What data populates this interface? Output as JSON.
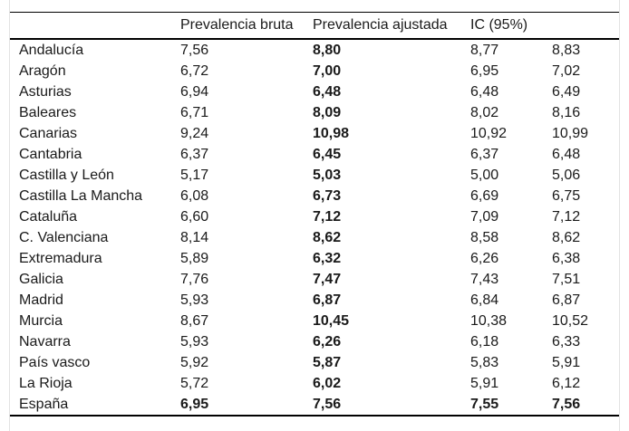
{
  "figure": {
    "headers": {
      "region": "",
      "bruta": "Prevalencia bruta",
      "ajustada": "Prevalencia ajustada",
      "ic": "IC (95%)"
    },
    "rows": [
      {
        "region": "Andalucía",
        "bruta": "7,56",
        "ajustada": "8,80",
        "ic_low": "8,77",
        "ic_high": "8,83",
        "bold": false
      },
      {
        "region": "Aragón",
        "bruta": "6,72",
        "ajustada": "7,00",
        "ic_low": "6,95",
        "ic_high": "7,02",
        "bold": false
      },
      {
        "region": "Asturias",
        "bruta": "6,94",
        "ajustada": "6,48",
        "ic_low": "6,48",
        "ic_high": "6,49",
        "bold": false
      },
      {
        "region": "Baleares",
        "bruta": "6,71",
        "ajustada": "8,09",
        "ic_low": "8,02",
        "ic_high": "8,16",
        "bold": false
      },
      {
        "region": "Canarias",
        "bruta": "9,24",
        "ajustada": "10,98",
        "ic_low": "10,92",
        "ic_high": "10,99",
        "bold": false
      },
      {
        "region": "Cantabria",
        "bruta": "6,37",
        "ajustada": "6,45",
        "ic_low": "6,37",
        "ic_high": "6,48",
        "bold": false
      },
      {
        "region": "Castilla y León",
        "bruta": "5,17",
        "ajustada": "5,03",
        "ic_low": "5,00",
        "ic_high": "5,06",
        "bold": false
      },
      {
        "region": "Castilla La Mancha",
        "bruta": "6,08",
        "ajustada": "6,73",
        "ic_low": "6,69",
        "ic_high": "6,75",
        "bold": false
      },
      {
        "region": "Cataluña",
        "bruta": "6,60",
        "ajustada": "7,12",
        "ic_low": "7,09",
        "ic_high": "7,12",
        "bold": false
      },
      {
        "region": "C. Valenciana",
        "bruta": "8,14",
        "ajustada": "8,62",
        "ic_low": "8,58",
        "ic_high": "8,62",
        "bold": false
      },
      {
        "region": "Extremadura",
        "bruta": "5,89",
        "ajustada": "6,32",
        "ic_low": "6,26",
        "ic_high": "6,38",
        "bold": false
      },
      {
        "region": "Galicia",
        "bruta": "7,76",
        "ajustada": "7,47",
        "ic_low": "7,43",
        "ic_high": "7,51",
        "bold": false
      },
      {
        "region": "Madrid",
        "bruta": "5,93",
        "ajustada": "6,87",
        "ic_low": "6,84",
        "ic_high": "6,87",
        "bold": false
      },
      {
        "region": "Murcia",
        "bruta": "8,67",
        "ajustada": "10,45",
        "ic_low": "10,38",
        "ic_high": "10,52",
        "bold": false
      },
      {
        "region": "Navarra",
        "bruta": "5,93",
        "ajustada": "6,26",
        "ic_low": "6,18",
        "ic_high": "6,33",
        "bold": false
      },
      {
        "region": "País vasco",
        "bruta": "5,92",
        "ajustada": "5,87",
        "ic_low": "5,83",
        "ic_high": "5,91",
        "bold": false
      },
      {
        "region": "La Rioja",
        "bruta": "5,72",
        "ajustada": "6,02",
        "ic_low": "5,91",
        "ic_high": "6,12",
        "bold": false
      },
      {
        "region": "España",
        "bruta": "6,95",
        "ajustada": "7,56",
        "ic_low": "7,55",
        "ic_high": "7,56",
        "bold": true
      }
    ]
  }
}
